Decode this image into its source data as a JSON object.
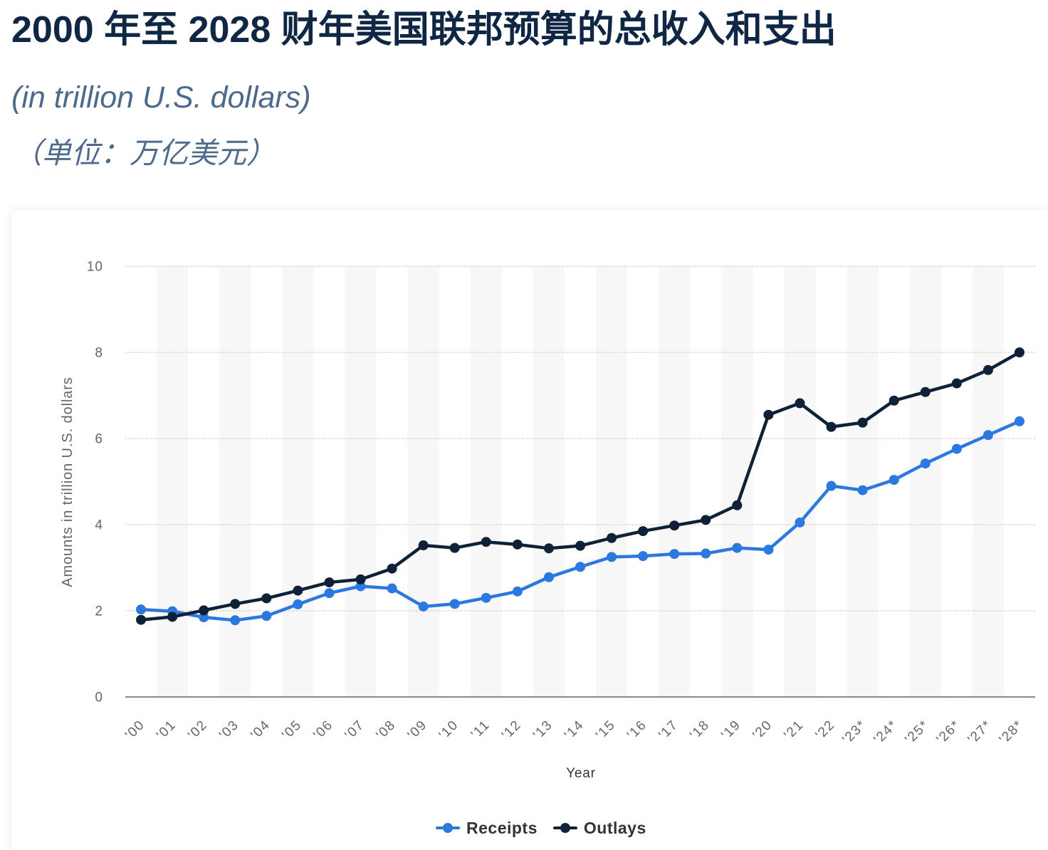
{
  "chart_data": {
    "type": "line",
    "title": "2000 年至 2028 财年美国联邦预算的总收入和支出",
    "subtitle": "(in trillion U.S. dollars)",
    "subtitle_zh": "（单位：万亿美元）",
    "xlabel": "Year",
    "ylabel": "Amounts in trillion U.S. dollars",
    "ylim": [
      0,
      10
    ],
    "yticks": [
      0,
      2,
      4,
      6,
      8,
      10
    ],
    "grid": true,
    "categories": [
      "'00",
      "'01",
      "'02",
      "'03",
      "'04",
      "'05",
      "'06",
      "'07",
      "'08",
      "'09",
      "'10",
      "'11",
      "'12",
      "'13",
      "'14",
      "'15",
      "'16",
      "'17",
      "'18",
      "'19",
      "'20",
      "'21",
      "'22",
      "'23*",
      "'24*",
      "'25*",
      "'26*",
      "'27*",
      "'28*"
    ],
    "series": [
      {
        "name": "Receipts",
        "color": "#2b78e0",
        "values": [
          2.03,
          1.99,
          1.85,
          1.78,
          1.88,
          2.15,
          2.41,
          2.57,
          2.52,
          2.1,
          2.16,
          2.3,
          2.45,
          2.78,
          3.02,
          3.25,
          3.27,
          3.32,
          3.33,
          3.46,
          3.42,
          4.05,
          4.9,
          4.8,
          5.04,
          5.42,
          5.76,
          6.08,
          6.4
        ]
      },
      {
        "name": "Outlays",
        "color": "#0e2136",
        "values": [
          1.79,
          1.86,
          2.01,
          2.16,
          2.29,
          2.47,
          2.66,
          2.73,
          2.98,
          3.52,
          3.46,
          3.6,
          3.54,
          3.45,
          3.51,
          3.69,
          3.85,
          3.98,
          4.11,
          4.45,
          6.55,
          6.82,
          6.27,
          6.37,
          6.88,
          7.08,
          7.28,
          7.59,
          8.0
        ]
      }
    ]
  }
}
